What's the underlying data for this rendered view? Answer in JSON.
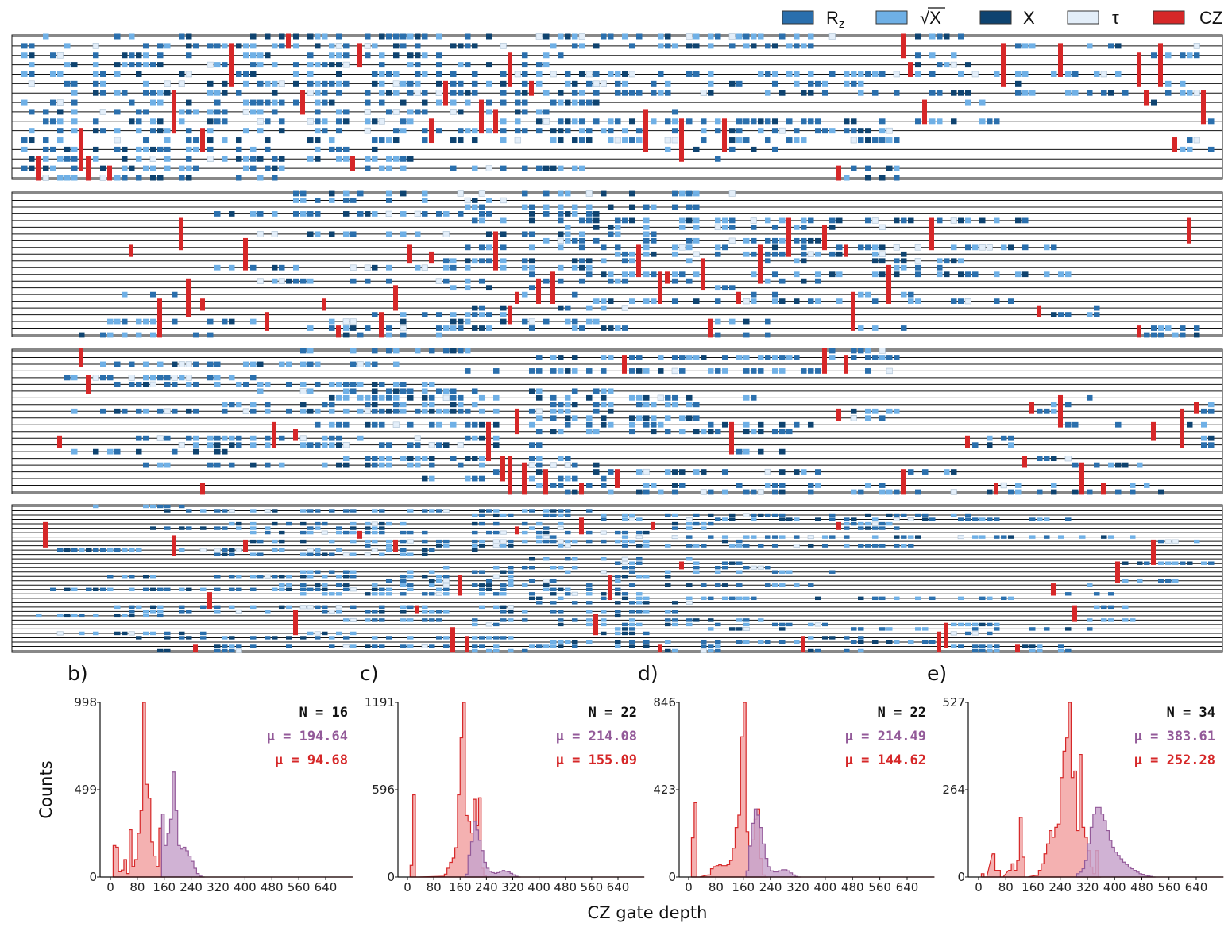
{
  "legend": [
    {
      "key": "rz",
      "label": "R",
      "sub": "z",
      "color": "#2a6fad"
    },
    {
      "key": "sx",
      "label": "√X",
      "color": "#6fb0e6"
    },
    {
      "key": "x",
      "label": "X",
      "color": "#0e4370"
    },
    {
      "key": "tau",
      "label": "τ",
      "color": "#e3eef9"
    },
    {
      "key": "cz",
      "label": "CZ",
      "color": "#d62728"
    }
  ],
  "circuits": [
    {
      "qubits": 16
    },
    {
      "qubits": 22
    },
    {
      "qubits": 22
    },
    {
      "qubits": 34
    }
  ],
  "common": {
    "ylabel": "Counts",
    "xlabel": "CZ gate depth"
  },
  "colors": {
    "red": "#d62728",
    "red_fill": "#f2a3a3",
    "purple": "#935a99",
    "purple_fill": "#c8a5cc"
  },
  "chart_data": [
    {
      "type": "histogram",
      "panel": "b)",
      "N_label": "N = 16",
      "mu_purple": "μ = 194.64",
      "mu_red": "μ = 94.68",
      "yticks": [
        "0",
        "499",
        "998"
      ],
      "ylim": [
        0,
        998
      ],
      "xticks": [
        "0",
        "80",
        "160",
        "240",
        "320",
        "400",
        "480",
        "560",
        "640"
      ],
      "xlim": [
        0,
        720
      ],
      "bin_width": 8,
      "series": [
        {
          "color": "red",
          "bins": [
            [
              8,
              180
            ],
            [
              16,
              170
            ],
            [
              24,
              30
            ],
            [
              32,
              40
            ],
            [
              40,
              100
            ],
            [
              48,
              20
            ],
            [
              56,
              270
            ],
            [
              64,
              60
            ],
            [
              72,
              100
            ],
            [
              80,
              250
            ],
            [
              88,
              380
            ],
            [
              96,
              998
            ],
            [
              104,
              530
            ],
            [
              112,
              450
            ],
            [
              120,
              200
            ],
            [
              128,
              120
            ],
            [
              136,
              60
            ],
            [
              144,
              280
            ],
            [
              152,
              0
            ]
          ]
        },
        {
          "color": "purple",
          "bins": [
            [
              152,
              360
            ],
            [
              160,
              180
            ],
            [
              168,
              250
            ],
            [
              176,
              330
            ],
            [
              184,
              600
            ],
            [
              192,
              380
            ],
            [
              200,
              180
            ],
            [
              208,
              160
            ],
            [
              216,
              170
            ],
            [
              224,
              150
            ],
            [
              232,
              120
            ],
            [
              240,
              90
            ],
            [
              248,
              50
            ],
            [
              256,
              20
            ],
            [
              264,
              5
            ],
            [
              272,
              0
            ]
          ]
        }
      ]
    },
    {
      "type": "histogram",
      "panel": "c)",
      "N_label": "N = 22",
      "mu_purple": "μ = 214.08",
      "mu_red": "μ = 155.09",
      "yticks": [
        "0",
        "596",
        "1191"
      ],
      "ylim": [
        0,
        1191
      ],
      "xticks": [
        "0",
        "80",
        "160",
        "240",
        "320",
        "400",
        "480",
        "560",
        "640"
      ],
      "xlim": [
        0,
        720
      ],
      "bin_width": 8,
      "series": [
        {
          "color": "red",
          "bins": [
            [
              8,
              80
            ],
            [
              16,
              560
            ],
            [
              24,
              0
            ],
            [
              104,
              5
            ],
            [
              112,
              20
            ],
            [
              120,
              60
            ],
            [
              128,
              100
            ],
            [
              136,
              130
            ],
            [
              144,
              200
            ],
            [
              152,
              560
            ],
            [
              160,
              950
            ],
            [
              168,
              1191
            ],
            [
              176,
              420
            ],
            [
              184,
              380
            ],
            [
              192,
              300
            ],
            [
              200,
              530
            ],
            [
              208,
              350
            ],
            [
              216,
              540
            ],
            [
              224,
              60
            ],
            [
              232,
              10
            ],
            [
              240,
              0
            ]
          ]
        },
        {
          "color": "purple",
          "bins": [
            [
              176,
              20
            ],
            [
              184,
              150
            ],
            [
              192,
              240
            ],
            [
              200,
              380
            ],
            [
              208,
              320
            ],
            [
              216,
              250
            ],
            [
              224,
              180
            ],
            [
              232,
              100
            ],
            [
              240,
              60
            ],
            [
              248,
              40
            ],
            [
              256,
              30
            ],
            [
              264,
              25
            ],
            [
              272,
              30
            ],
            [
              280,
              40
            ],
            [
              288,
              45
            ],
            [
              296,
              40
            ],
            [
              304,
              35
            ],
            [
              312,
              25
            ],
            [
              320,
              15
            ],
            [
              328,
              5
            ],
            [
              336,
              0
            ]
          ]
        }
      ]
    },
    {
      "type": "histogram",
      "panel": "d)",
      "N_label": "N = 22",
      "mu_purple": "μ = 214.49",
      "mu_red": "μ = 144.62",
      "yticks": [
        "0",
        "423",
        "846"
      ],
      "ylim": [
        0,
        846
      ],
      "xticks": [
        "0",
        "80",
        "160",
        "240",
        "320",
        "400",
        "480",
        "560",
        "640"
      ],
      "xlim": [
        0,
        720
      ],
      "bin_width": 8,
      "series": [
        {
          "color": "red",
          "bins": [
            [
              8,
              190
            ],
            [
              16,
              360
            ],
            [
              24,
              0
            ],
            [
              56,
              10
            ],
            [
              64,
              40
            ],
            [
              72,
              50
            ],
            [
              80,
              55
            ],
            [
              88,
              60
            ],
            [
              96,
              55
            ],
            [
              104,
              55
            ],
            [
              112,
              60
            ],
            [
              120,
              80
            ],
            [
              128,
              140
            ],
            [
              136,
              240
            ],
            [
              144,
              300
            ],
            [
              152,
              680
            ],
            [
              160,
              846
            ],
            [
              168,
              220
            ],
            [
              176,
              150
            ],
            [
              184,
              180
            ],
            [
              192,
              280
            ],
            [
              200,
              330
            ],
            [
              208,
              90
            ],
            [
              216,
              10
            ],
            [
              224,
              0
            ]
          ]
        },
        {
          "color": "purple",
          "bins": [
            [
              168,
              30
            ],
            [
              176,
              150
            ],
            [
              184,
              260
            ],
            [
              192,
              330
            ],
            [
              200,
              300
            ],
            [
              208,
              240
            ],
            [
              216,
              160
            ],
            [
              224,
              90
            ],
            [
              232,
              50
            ],
            [
              240,
              30
            ],
            [
              248,
              25
            ],
            [
              256,
              25
            ],
            [
              264,
              30
            ],
            [
              272,
              35
            ],
            [
              280,
              35
            ],
            [
              288,
              30
            ],
            [
              296,
              20
            ],
            [
              304,
              10
            ],
            [
              312,
              3
            ],
            [
              320,
              0
            ]
          ]
        }
      ]
    },
    {
      "type": "histogram",
      "panel": "e)",
      "N_label": "N = 34",
      "mu_purple": "μ = 383.61",
      "mu_red": "μ = 252.28",
      "yticks": [
        "0",
        "264",
        "527"
      ],
      "ylim": [
        0,
        527
      ],
      "xticks": [
        "0",
        "80",
        "160",
        "240",
        "320",
        "400",
        "480",
        "560",
        "640"
      ],
      "xlim": [
        0,
        720
      ],
      "bin_width": 8,
      "series": [
        {
          "color": "red",
          "bins": [
            [
              8,
              10
            ],
            [
              16,
              0
            ],
            [
              40,
              70
            ],
            [
              48,
              20
            ],
            [
              56,
              20
            ],
            [
              64,
              0
            ],
            [
              88,
              20
            ],
            [
              96,
              40
            ],
            [
              104,
              20
            ],
            [
              112,
              50
            ],
            [
              120,
              180
            ],
            [
              128,
              60
            ],
            [
              136,
              0
            ],
            [
              168,
              5
            ],
            [
              176,
              20
            ],
            [
              184,
              40
            ],
            [
              192,
              70
            ],
            [
              200,
              100
            ],
            [
              208,
              140
            ],
            [
              216,
              120
            ],
            [
              224,
              150
            ],
            [
              232,
              160
            ],
            [
              240,
              300
            ],
            [
              248,
              380
            ],
            [
              256,
              420
            ],
            [
              264,
              527
            ],
            [
              272,
              300
            ],
            [
              280,
              320
            ],
            [
              288,
              140
            ],
            [
              296,
              370
            ],
            [
              304,
              150
            ],
            [
              312,
              120
            ],
            [
              320,
              80
            ],
            [
              328,
              30
            ],
            [
              336,
              10
            ],
            [
              344,
              80
            ],
            [
              352,
              0
            ]
          ]
        },
        {
          "color": "purple",
          "bins": [
            [
              288,
              10
            ],
            [
              296,
              15
            ],
            [
              304,
              25
            ],
            [
              312,
              50
            ],
            [
              320,
              100
            ],
            [
              328,
              150
            ],
            [
              336,
              190
            ],
            [
              344,
              210
            ],
            [
              352,
              210
            ],
            [
              360,
              190
            ],
            [
              368,
              170
            ],
            [
              376,
              140
            ],
            [
              384,
              110
            ],
            [
              392,
              90
            ],
            [
              400,
              75
            ],
            [
              408,
              65
            ],
            [
              416,
              55
            ],
            [
              424,
              45
            ],
            [
              432,
              38
            ],
            [
              440,
              30
            ],
            [
              448,
              25
            ],
            [
              456,
              20
            ],
            [
              464,
              15
            ],
            [
              472,
              10
            ],
            [
              480,
              8
            ],
            [
              488,
              5
            ],
            [
              496,
              3
            ],
            [
              504,
              2
            ],
            [
              512,
              0
            ]
          ]
        }
      ]
    }
  ]
}
